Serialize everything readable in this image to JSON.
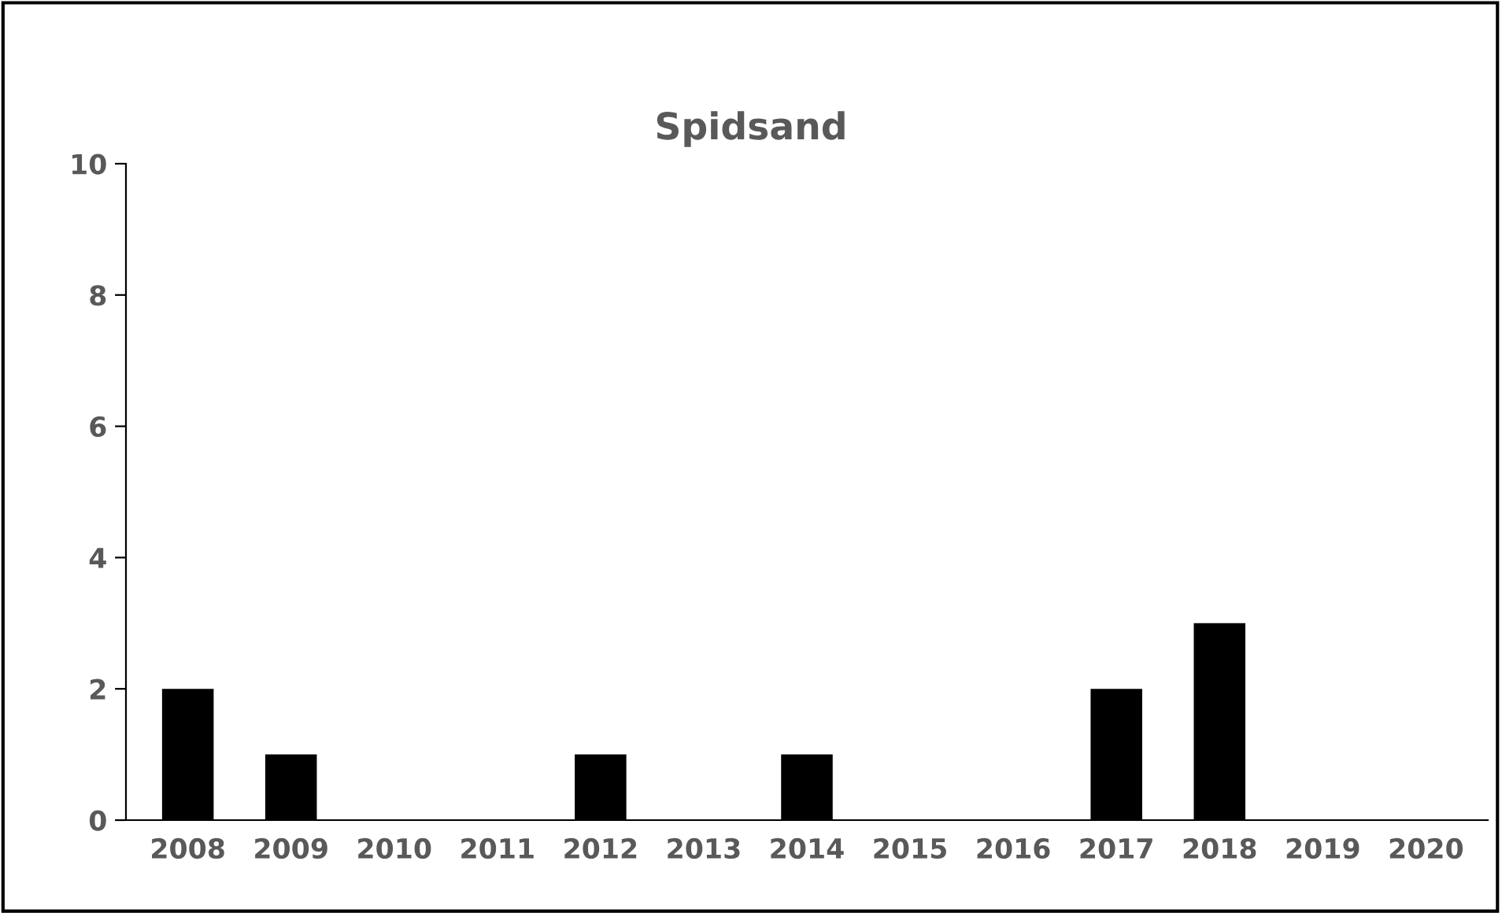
{
  "chart_data": {
    "type": "bar",
    "title": "Spidsand",
    "categories": [
      "2008",
      "2009",
      "2010",
      "2011",
      "2012",
      "2013",
      "2014",
      "2015",
      "2016",
      "2017",
      "2018",
      "2019",
      "2020"
    ],
    "values": [
      2,
      1,
      0,
      0,
      1,
      0,
      1,
      0,
      0,
      2,
      3,
      0,
      0
    ],
    "color": "#000000",
    "ylim": [
      0,
      10
    ],
    "yticks": [
      0,
      2,
      4,
      6,
      8,
      10
    ],
    "grid": false
  }
}
